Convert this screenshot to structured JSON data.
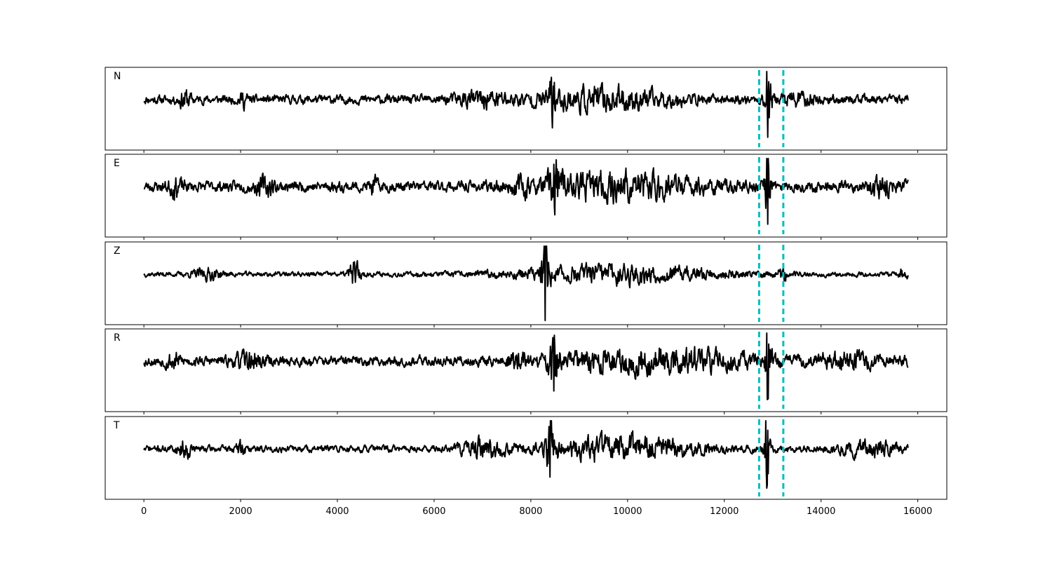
{
  "chart_data": {
    "type": "line",
    "xlim": [
      -800,
      16600
    ],
    "x_ticks": [
      0,
      2000,
      4000,
      6000,
      8000,
      10000,
      12000,
      14000,
      16000
    ],
    "x_tick_labels": [
      "0",
      "2000",
      "4000",
      "6000",
      "8000",
      "10000",
      "12000",
      "14000",
      "16000"
    ],
    "sample_range": [
      0,
      15800
    ],
    "pick_lines": [
      12720,
      13220
    ],
    "pick_line_color": "#00bfbf",
    "trace_color": "#000000",
    "grid": false,
    "panels": [
      {
        "label": "N",
        "noise": 0.18,
        "seed": 11,
        "bursts": [
          {
            "center": 850,
            "width": 120,
            "amp": 0.35
          },
          {
            "center": 2050,
            "width": 80,
            "amp": 0.25
          },
          {
            "center": 7000,
            "width": 600,
            "amp": 0.25
          },
          {
            "center": 8450,
            "width": 80,
            "amp": 0.9
          },
          {
            "center": 9500,
            "width": 1400,
            "amp": 0.4
          },
          {
            "center": 12900,
            "width": 70,
            "amp": 1.2
          },
          {
            "center": 13500,
            "width": 400,
            "amp": 0.2
          }
        ]
      },
      {
        "label": "E",
        "noise": 0.22,
        "seed": 23,
        "bursts": [
          {
            "center": 650,
            "width": 150,
            "amp": 0.3
          },
          {
            "center": 2500,
            "width": 200,
            "amp": 0.3
          },
          {
            "center": 4750,
            "width": 80,
            "amp": 0.3
          },
          {
            "center": 7800,
            "width": 200,
            "amp": 0.25
          },
          {
            "center": 8500,
            "width": 150,
            "amp": 0.9
          },
          {
            "center": 10000,
            "width": 1500,
            "amp": 0.5
          },
          {
            "center": 12900,
            "width": 60,
            "amp": 1.2
          },
          {
            "center": 15300,
            "width": 300,
            "amp": 0.3
          }
        ]
      },
      {
        "label": "Z",
        "noise": 0.1,
        "seed": 37,
        "bursts": [
          {
            "center": 1300,
            "width": 300,
            "amp": 0.2
          },
          {
            "center": 4350,
            "width": 120,
            "amp": 0.55
          },
          {
            "center": 8300,
            "width": 80,
            "amp": 1.4
          },
          {
            "center": 9800,
            "width": 2000,
            "amp": 0.35
          },
          {
            "center": 13200,
            "width": 80,
            "amp": 0.35
          },
          {
            "center": 15700,
            "width": 100,
            "amp": 0.2
          }
        ]
      },
      {
        "label": "R",
        "noise": 0.2,
        "seed": 53,
        "bursts": [
          {
            "center": 600,
            "width": 150,
            "amp": 0.3
          },
          {
            "center": 2200,
            "width": 300,
            "amp": 0.3
          },
          {
            "center": 7700,
            "width": 200,
            "amp": 0.3
          },
          {
            "center": 8480,
            "width": 100,
            "amp": 0.95
          },
          {
            "center": 10500,
            "width": 1800,
            "amp": 0.5
          },
          {
            "center": 12900,
            "width": 70,
            "amp": 1.15
          },
          {
            "center": 14500,
            "width": 600,
            "amp": 0.3
          }
        ]
      },
      {
        "label": "T",
        "noise": 0.14,
        "seed": 71,
        "bursts": [
          {
            "center": 850,
            "width": 150,
            "amp": 0.3
          },
          {
            "center": 2000,
            "width": 100,
            "amp": 0.25
          },
          {
            "center": 7000,
            "width": 500,
            "amp": 0.3
          },
          {
            "center": 8400,
            "width": 100,
            "amp": 0.9
          },
          {
            "center": 9800,
            "width": 1500,
            "amp": 0.45
          },
          {
            "center": 12880,
            "width": 60,
            "amp": 1.25
          },
          {
            "center": 15000,
            "width": 600,
            "amp": 0.25
          }
        ]
      }
    ]
  }
}
